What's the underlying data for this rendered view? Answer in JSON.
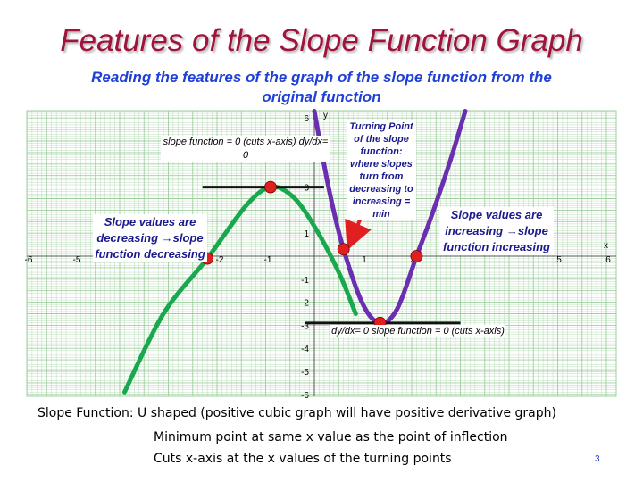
{
  "slide": {
    "title": "Features of the Slope Function Graph",
    "subtitle": "Reading the features of the graph of the slope function from the original function",
    "page_number": "3"
  },
  "labels": {
    "zero_label": "slope function = 0 (cuts x-axis) dy/dx= 0",
    "decreasing_label": "Slope values are decreasing →slope function decreasing",
    "turning_label": "Turning Point of the slope function: where slopes turn from decreasing to increasing = min",
    "increasing_label": "Slope values are increasing →slope function increasing",
    "minimum_label": "dy/dx= 0 slope function = 0 (cuts x-axis)"
  },
  "description": {
    "line1": "Slope Function:  U shaped  (positive cubic graph will have positive derivative graph)",
    "line2": "Minimum point at same x value as the point of inflection",
    "line3": "Cuts x-axis at the x values of the turning points"
  },
  "colors": {
    "original_function": "#1aa84e",
    "slope_function": "#6a2fb0",
    "points": "#e02020",
    "grid": "#9fcf9f",
    "title": "#a0143c",
    "subtitle": "#1f3fd6"
  },
  "chart_data": {
    "type": "line",
    "xlim": [
      -6,
      6
    ],
    "ylim": [
      -6,
      6
    ],
    "x_ticks": [
      "-6",
      "-5",
      "-2",
      "-1",
      "1",
      "2",
      "5",
      "6"
    ],
    "y_ticks": [
      "6",
      "3",
      "1",
      "-1",
      "-2",
      "-3",
      "-4",
      "-5",
      "-6"
    ],
    "x_axis_label": "x",
    "y_axis_label": "y",
    "grid": true,
    "series": [
      {
        "role": "original function",
        "color": "#1aa84e",
        "x": [
          -3.9,
          -3.1,
          -2.2,
          -1.4,
          -0.9,
          -0.45,
          0.0,
          0.5,
          0.85
        ],
        "y": [
          -5.9,
          -2.5,
          -0.1,
          2.2,
          3.0,
          2.6,
          1.3,
          -0.7,
          -2.5
        ]
      },
      {
        "role": "slope function",
        "color": "#6a2fb0",
        "x": [
          0.0,
          0.3,
          0.6,
          1.0,
          1.35,
          1.7,
          2.1,
          2.4,
          2.8,
          3.1
        ],
        "y": [
          6.3,
          2.9,
          0.3,
          -2.1,
          -2.9,
          -2.3,
          0.0,
          1.7,
          4.2,
          6.3
        ]
      }
    ],
    "points": [
      {
        "role": "turning point (max)",
        "x": -0.9,
        "y": 3.0
      },
      {
        "role": "inflection point",
        "x": 0.6,
        "y": 0.3
      },
      {
        "role": "x-intercept",
        "x": -2.2,
        "y": -0.1
      },
      {
        "role": "x-intercept",
        "x": 2.1,
        "y": 0.0
      },
      {
        "role": "slope function minimum",
        "x": 1.35,
        "y": -2.9
      }
    ],
    "tangent_lines": [
      {
        "y": 3.0,
        "x_from": -2.3,
        "x_to": 0.2
      },
      {
        "y": -2.9,
        "x_from": -0.2,
        "x_to": 3.0
      }
    ]
  }
}
